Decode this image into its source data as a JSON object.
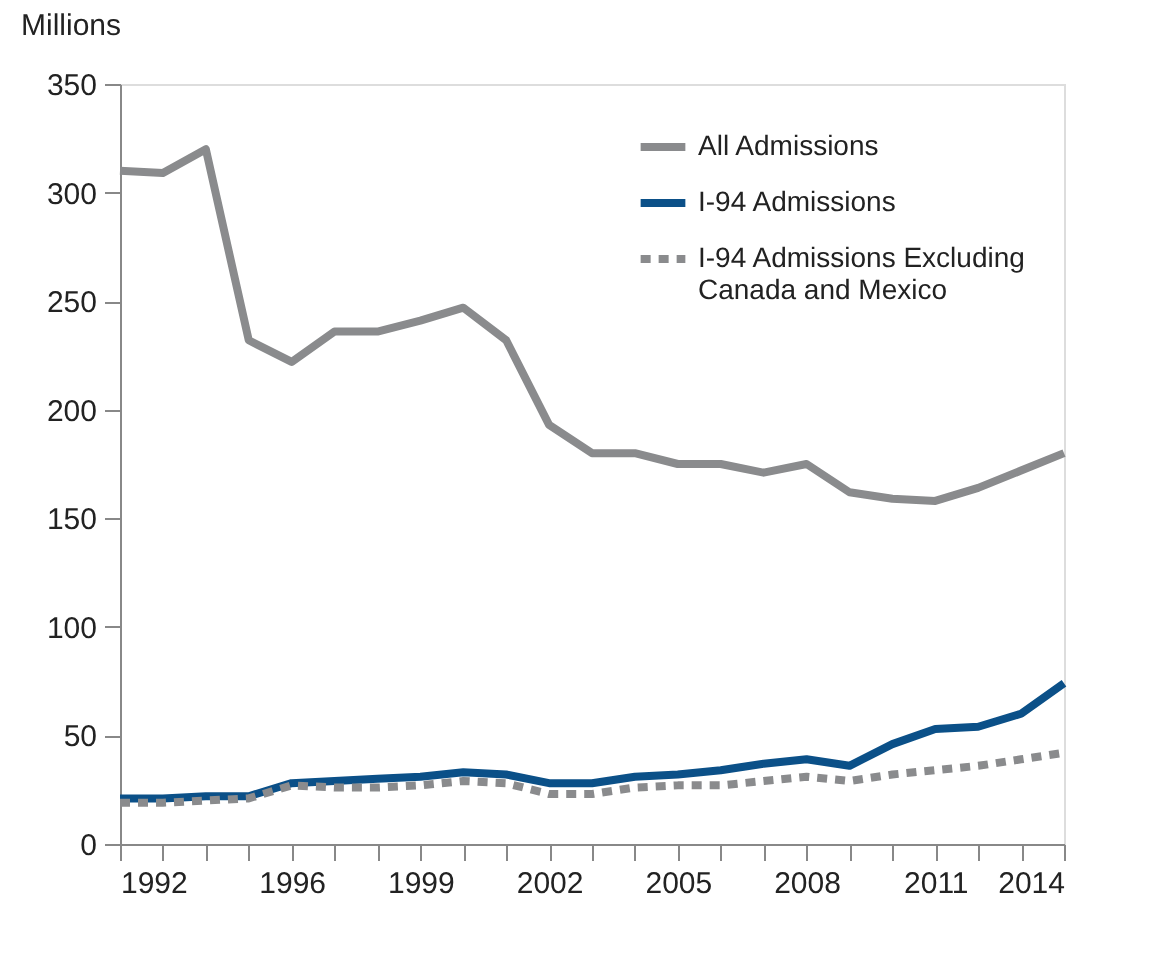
{
  "chart_data": {
    "type": "line",
    "ylabel": "Millions",
    "x": [
      1992,
      1993,
      1994,
      1995,
      1996,
      1997,
      1998,
      1999,
      2000,
      2001,
      2002,
      2003,
      2004,
      2005,
      2006,
      2007,
      2008,
      2009,
      2010,
      2011,
      2012,
      2013,
      2014
    ],
    "series": [
      {
        "name": "All Admissions",
        "color": "#8a8b8d",
        "line_style": "solid",
        "values": [
          310,
          309,
          320,
          232,
          222,
          236,
          236,
          241,
          247,
          232,
          193,
          180,
          180,
          175,
          175,
          171,
          175,
          162,
          159,
          158,
          164,
          172,
          180
        ]
      },
      {
        "name": "I-94 Admissions",
        "color": "#0b5088",
        "line_style": "solid",
        "values": [
          21,
          21,
          22,
          22,
          28,
          29,
          30,
          31,
          33,
          32,
          28,
          28,
          31,
          32,
          34,
          37,
          39,
          36,
          46,
          53,
          54,
          60,
          74
        ]
      },
      {
        "name": "I-94 Admissions Excluding Canada and Mexico",
        "color": "#8a8b8d",
        "line_style": "dashed",
        "values": [
          19,
          19,
          20,
          21,
          27,
          26,
          26,
          27,
          29,
          28,
          23,
          23,
          26,
          27,
          27,
          29,
          31,
          29,
          32,
          34,
          36,
          39,
          42
        ]
      }
    ],
    "xlim": [
      1992,
      2014
    ],
    "xticks": [
      1992,
      {
        "value": 1993,
        "label": null
      },
      {
        "value": 1994,
        "label": null
      },
      {
        "value": 1995,
        "label": null
      },
      1996,
      {
        "value": 1997,
        "label": null
      },
      {
        "value": 1998,
        "label": null
      },
      1999,
      {
        "value": 2000,
        "label": null
      },
      {
        "value": 2001,
        "label": null
      },
      2002,
      {
        "value": 2003,
        "label": null
      },
      {
        "value": 2004,
        "label": null
      },
      2005,
      {
        "value": 2006,
        "label": null
      },
      {
        "value": 2007,
        "label": null
      },
      2008,
      {
        "value": 2009,
        "label": null
      },
      {
        "value": 2010,
        "label": null
      },
      2011,
      {
        "value": 2012,
        "label": null
      },
      {
        "value": 2013,
        "label": null
      },
      2014
    ],
    "ylim": [
      0,
      350
    ],
    "yticks": [
      0,
      50,
      100,
      150,
      200,
      250,
      300,
      350
    ],
    "grid": false,
    "legend": "top right",
    "marker": "none"
  }
}
